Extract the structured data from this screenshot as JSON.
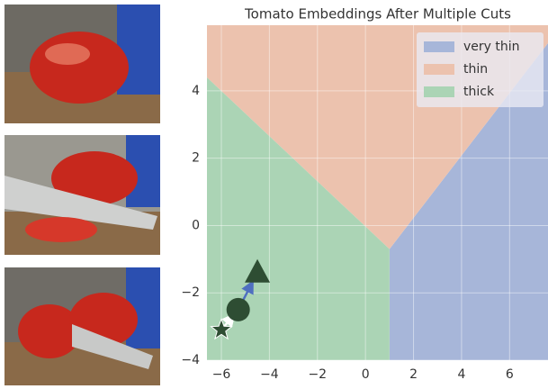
{
  "chart_data": {
    "type": "scatter",
    "title": "Tomato Embeddings After Multiple Cuts",
    "xlim": [
      -6.6,
      7.6
    ],
    "ylim": [
      -4,
      5.95
    ],
    "xticks": [
      {
        "value": -6,
        "label": "−6"
      },
      {
        "value": -4,
        "label": "−4"
      },
      {
        "value": -2,
        "label": "−2"
      },
      0,
      2,
      4,
      6
    ],
    "yticks": [
      {
        "value": -4,
        "label": "−4"
      },
      {
        "value": -2,
        "label": "−2"
      },
      0,
      2,
      4
    ],
    "grid": true,
    "legend": "upper right",
    "regions": [
      {
        "name": "very thin",
        "color": "#a7b6d9",
        "x": [
          1,
          7.6,
          7.6,
          1
        ],
        "y": [
          -0.7,
          5.42,
          -4,
          -4
        ]
      },
      {
        "name": "thin",
        "color": "#ecc2ae",
        "x": [
          -6.6,
          -6.6,
          7.6,
          7.6,
          1
        ],
        "y": [
          4.4,
          5.95,
          5.95,
          5.42,
          -0.7
        ]
      },
      {
        "name": "thick",
        "color": "#abd4b5",
        "x": [
          -6.6,
          1,
          1,
          -6.6
        ],
        "y": [
          4.4,
          -0.7,
          -4,
          -4
        ]
      }
    ],
    "points": {
      "x": [
        -6,
        -5.3,
        -4.5
      ],
      "y": [
        -3.1,
        -2.5,
        -1.4
      ],
      "markers": [
        "star",
        "circle",
        "triangle"
      ],
      "color": "#2e4d33"
    }
  }
}
